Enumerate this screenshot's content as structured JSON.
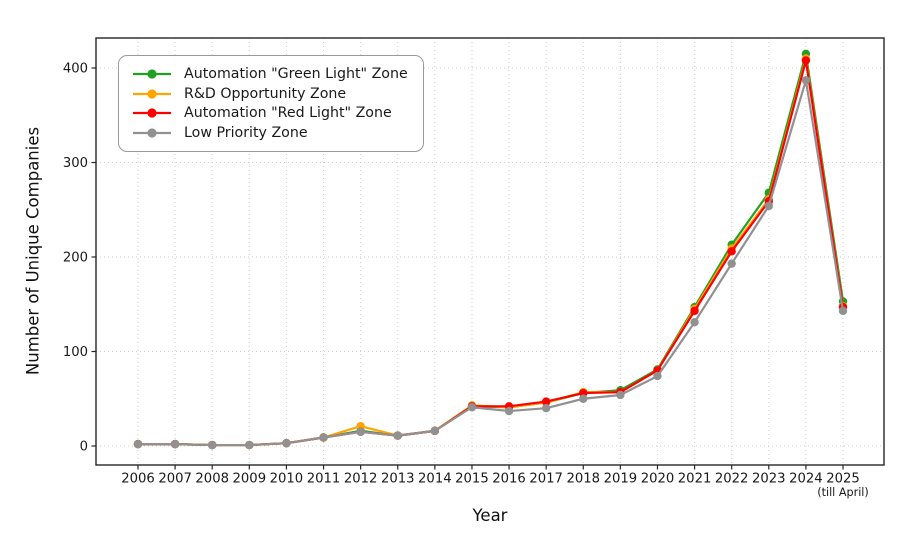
{
  "chart_data": {
    "type": "line",
    "title": "",
    "xlabel": "Year",
    "ylabel": "Number of Unique Companies",
    "categories": [
      "2006",
      "2007",
      "2008",
      "2009",
      "2010",
      "2011",
      "2012",
      "2013",
      "2014",
      "2015",
      "2016",
      "2017",
      "2018",
      "2019",
      "2020",
      "2021",
      "2022",
      "2023",
      "2024",
      "2025"
    ],
    "x_note": {
      "category": "2025",
      "label": "(till April)"
    },
    "yticks": [
      0,
      100,
      200,
      300,
      400
    ],
    "ylim": [
      -20,
      433
    ],
    "grid": "dotted, both axes",
    "legend_position": "upper left",
    "series": [
      {
        "name": "Automation \"Green Light\" Zone",
        "color": "#21a121",
        "values": [
          2,
          2,
          1,
          1,
          3,
          9,
          16,
          11,
          16,
          42,
          41,
          46,
          56,
          59,
          81,
          147,
          213,
          268,
          415,
          153
        ]
      },
      {
        "name": "R&D Opportunity Zone",
        "color": "#ffa500",
        "values": [
          2,
          2,
          1,
          1,
          3,
          9,
          21,
          11,
          16,
          43,
          41,
          46,
          57,
          57,
          80,
          145,
          209,
          261,
          410,
          148
        ]
      },
      {
        "name": "Automation \"Red Light\" Zone",
        "color": "#ff0000",
        "values": [
          2,
          2,
          1,
          1,
          3,
          9,
          15,
          11,
          16,
          42,
          42,
          47,
          56,
          57,
          80,
          143,
          206,
          259,
          408,
          147
        ]
      },
      {
        "name": "Low Priority Zone",
        "color": "#919191",
        "values": [
          2,
          2,
          1,
          1,
          3,
          9,
          15,
          11,
          16,
          41,
          37,
          40,
          50,
          54,
          74,
          131,
          193,
          254,
          387,
          143
        ]
      }
    ],
    "colors": {
      "grid": "#cfcfcf",
      "spine": "#262626",
      "tick_text": "#1a1a1a"
    }
  }
}
